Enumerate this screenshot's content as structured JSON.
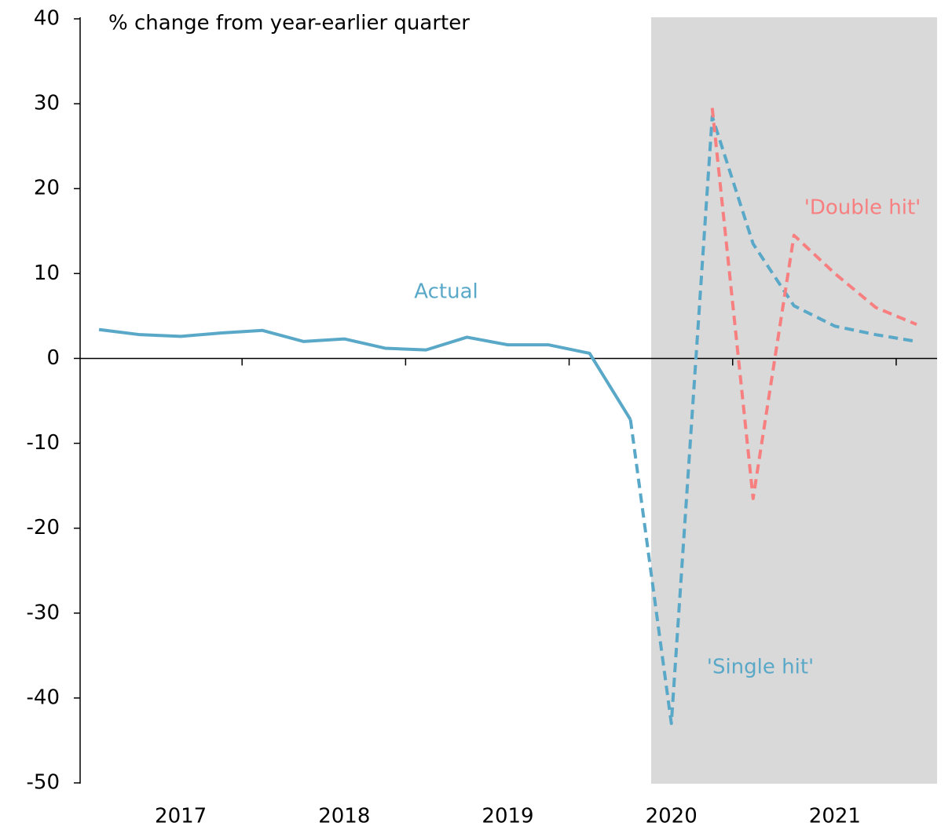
{
  "chart_data": {
    "type": "line",
    "y_label": "% change from year-earlier quarter",
    "categories": [
      null,
      null,
      "2017",
      null,
      null,
      null,
      "2018",
      null,
      null,
      null,
      "2019",
      null,
      null,
      null,
      "2020",
      null,
      null,
      null,
      "2021",
      null,
      null
    ],
    "series": [
      {
        "name": "Actual",
        "color": "#5aa8c8",
        "dashed": false,
        "values": [
          3.4,
          2.8,
          2.6,
          3.0,
          3.3,
          2.0,
          2.3,
          1.2,
          1.0,
          2.5,
          1.6,
          1.6,
          0.6,
          -7.2,
          null,
          null,
          null,
          null,
          null,
          null,
          null
        ]
      },
      {
        "name": "'Single hit'",
        "color": "#5aa8c8",
        "dashed": true,
        "values": [
          null,
          null,
          null,
          null,
          null,
          null,
          null,
          null,
          null,
          null,
          null,
          null,
          null,
          -7.2,
          -43,
          28.5,
          13.5,
          6.2,
          3.8,
          2.8,
          2.0
        ]
      },
      {
        "name": "'Double hit'",
        "color": "#f77f80",
        "dashed": true,
        "values": [
          null,
          null,
          null,
          null,
          null,
          null,
          null,
          null,
          null,
          null,
          null,
          null,
          null,
          null,
          null,
          29.5,
          -16.5,
          14.5,
          10,
          6,
          4
        ]
      }
    ],
    "ylim": [
      -50,
      40
    ],
    "yticks": [
      -50,
      -40,
      -30,
      -20,
      -10,
      0,
      10,
      20,
      30,
      40
    ]
  }
}
